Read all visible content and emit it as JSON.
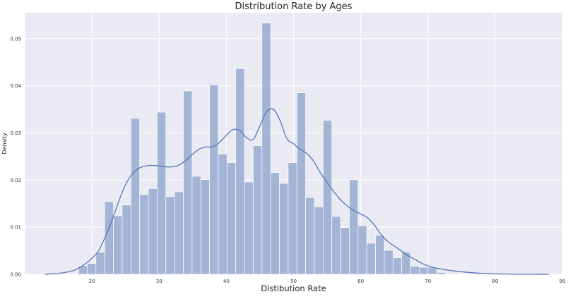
{
  "chart_data": {
    "type": "histogram",
    "title": "Distribution Rate by Ages",
    "xlabel": "Distibution Rate",
    "ylabel": "Density",
    "xlim": [
      10,
      90
    ],
    "ylim": [
      0,
      0.0555
    ],
    "xticks": [
      20,
      30,
      40,
      50,
      60,
      70,
      80,
      90
    ],
    "yticks": [
      0.0,
      0.01,
      0.02,
      0.03,
      0.04,
      0.05
    ],
    "xtick_labels": [
      "20",
      "30",
      "40",
      "50",
      "60",
      "70",
      "80",
      "90"
    ],
    "ytick_labels": [
      "0.00",
      "0.01",
      "0.02",
      "0.03",
      "0.04",
      "0.05"
    ],
    "grid": true,
    "bin_edges": [
      18.0,
      19.3,
      20.6,
      21.9,
      23.2,
      24.5,
      25.8,
      27.1,
      28.4,
      29.7,
      31.0,
      32.3,
      33.6,
      34.9,
      36.2,
      37.5,
      38.8,
      40.1,
      41.4,
      42.7,
      44.0,
      45.3,
      46.6,
      47.9,
      49.2,
      50.5,
      51.8,
      53.1,
      54.4,
      55.7,
      57.0,
      58.3,
      59.6,
      60.9,
      62.2,
      63.5,
      64.8,
      66.1,
      67.4,
      68.7,
      70.0,
      71.3,
      72.6
    ],
    "density": [
      0.0018,
      0.0023,
      0.0047,
      0.0154,
      0.0124,
      0.0147,
      0.0331,
      0.0169,
      0.0182,
      0.0344,
      0.0165,
      0.0175,
      0.0389,
      0.0208,
      0.0201,
      0.0402,
      0.0255,
      0.0237,
      0.0436,
      0.0196,
      0.0273,
      0.0533,
      0.0216,
      0.0193,
      0.0237,
      0.0385,
      0.0163,
      0.0143,
      0.0327,
      0.0123,
      0.0099,
      0.0201,
      0.0103,
      0.0066,
      0.0083,
      0.0051,
      0.0035,
      0.0047,
      0.0017,
      0.0015,
      0.0015,
      0.0004
    ],
    "kde": {
      "x": [
        13,
        15,
        17,
        18,
        19,
        20,
        21,
        22,
        23,
        24,
        25,
        26,
        27,
        28,
        29,
        30,
        31,
        32,
        33,
        34,
        35,
        36,
        37,
        38,
        39,
        40,
        41,
        42,
        43,
        44,
        45,
        46,
        47,
        48,
        49,
        50,
        51,
        52,
        53,
        54,
        55,
        56,
        57,
        58,
        59,
        60,
        61,
        62,
        63,
        64,
        65,
        66,
        67,
        68,
        69,
        70,
        72,
        74,
        76,
        78,
        80,
        82,
        84,
        86,
        88
      ],
      "y": [
        0.0,
        0.0002,
        0.0007,
        0.0013,
        0.0022,
        0.0034,
        0.005,
        0.008,
        0.0115,
        0.0155,
        0.019,
        0.0213,
        0.0225,
        0.023,
        0.0231,
        0.023,
        0.0228,
        0.0228,
        0.0232,
        0.0242,
        0.0255,
        0.0266,
        0.027,
        0.0271,
        0.028,
        0.0295,
        0.0307,
        0.0305,
        0.029,
        0.0286,
        0.0315,
        0.0345,
        0.035,
        0.0326,
        0.0288,
        0.0277,
        0.0265,
        0.0256,
        0.024,
        0.0215,
        0.0195,
        0.0175,
        0.0158,
        0.0145,
        0.0135,
        0.0128,
        0.012,
        0.0105,
        0.0085,
        0.007,
        0.006,
        0.005,
        0.004,
        0.0032,
        0.0024,
        0.0018,
        0.0011,
        0.0007,
        0.0004,
        0.0002,
        0.0001,
        5e-05,
        2e-05,
        1e-05,
        0.0
      ]
    },
    "colors": {
      "bar_fill": "#a4b4d5",
      "kde_line": "#5577bb",
      "plot_background": "#eaeaf2",
      "grid": "#ffffff"
    }
  }
}
